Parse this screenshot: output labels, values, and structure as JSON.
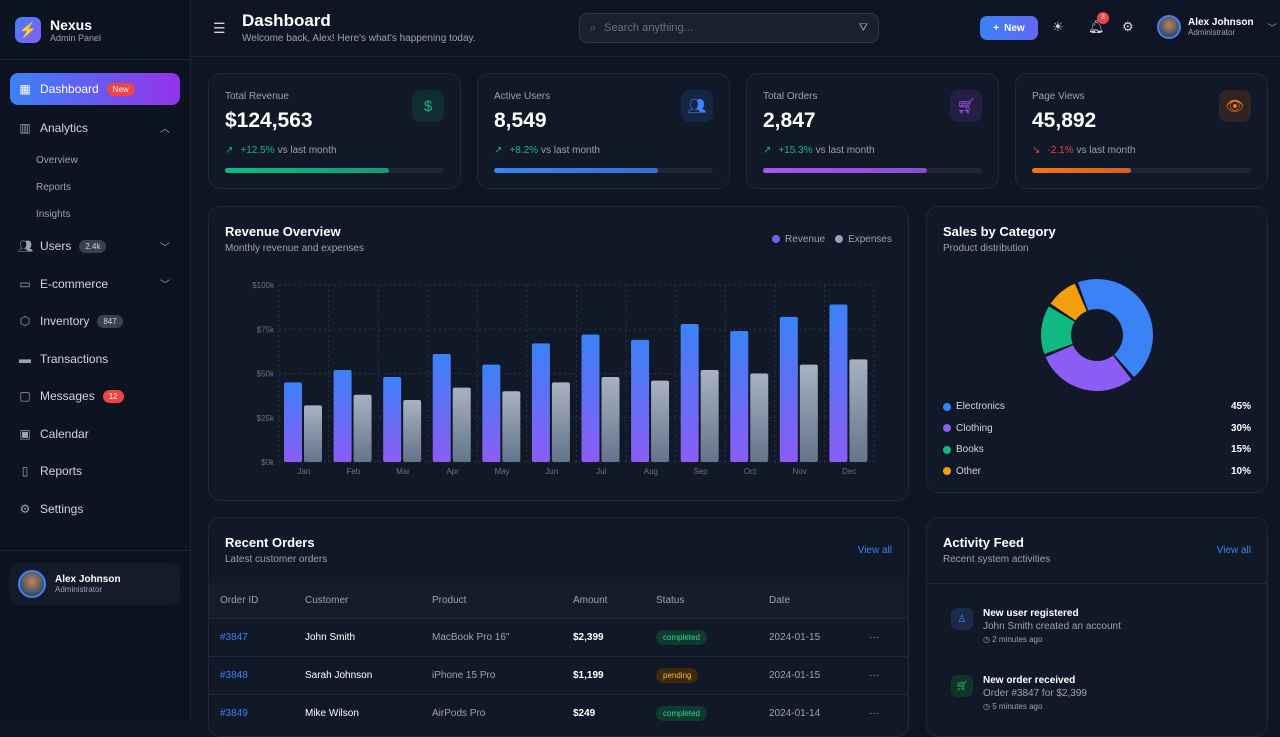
{
  "brand": {
    "name": "Nexus",
    "subtitle": "Admin Panel"
  },
  "sidebar": {
    "items": [
      {
        "label": "Dashboard",
        "badge": "New",
        "icon": "grid-icon"
      },
      {
        "label": "Analytics",
        "icon": "bar-chart-icon",
        "children": [
          "Overview",
          "Reports",
          "Insights"
        ]
      },
      {
        "label": "Users",
        "badge": "2.4k",
        "icon": "users-icon"
      },
      {
        "label": "E-commerce",
        "icon": "shopping-bag-icon"
      },
      {
        "label": "Inventory",
        "badge": "847",
        "icon": "box-icon"
      },
      {
        "label": "Transactions",
        "icon": "credit-card-icon"
      },
      {
        "label": "Messages",
        "badge": "12",
        "icon": "message-icon"
      },
      {
        "label": "Calendar",
        "icon": "calendar-icon"
      },
      {
        "label": "Reports",
        "icon": "file-icon"
      },
      {
        "label": "Settings",
        "icon": "gear-icon"
      }
    ],
    "user": {
      "name": "Alex Johnson",
      "role": "Administrator"
    }
  },
  "header": {
    "title": "Dashboard",
    "subtitle": "Welcome back, Alex! Here's what's happening today.",
    "search_placeholder": "Search anything...",
    "new_label": "New",
    "notifications": "3",
    "user": {
      "name": "Alex Johnson",
      "role": "Administrator"
    }
  },
  "kpis": [
    {
      "label": "Total Revenue",
      "value": "$124,563",
      "delta": "+12.5%",
      "suffix": "vs last month",
      "progress": 75,
      "color": "#10b981",
      "icon": "$"
    },
    {
      "label": "Active Users",
      "value": "8,549",
      "delta": "+8.2%",
      "suffix": "vs last month",
      "progress": 75,
      "color": "#3b82f6",
      "icon": "users"
    },
    {
      "label": "Total Orders",
      "value": "2,847",
      "delta": "+15.3%",
      "suffix": "vs last month",
      "progress": 75,
      "color": "#a855f7",
      "icon": "cart"
    },
    {
      "label": "Page Views",
      "value": "45,892",
      "delta": "-2.1%",
      "suffix": "vs last month",
      "progress": 45,
      "color": "#f97316",
      "icon": "eye"
    }
  ],
  "revenue": {
    "title": "Revenue Overview",
    "subtitle": "Monthly revenue and expenses"
  },
  "chart_data": {
    "type": "bar",
    "categories": [
      "Jan",
      "Feb",
      "Mar",
      "Apr",
      "May",
      "Jun",
      "Jul",
      "Aug",
      "Sep",
      "Oct",
      "Nov",
      "Dec"
    ],
    "series": [
      {
        "name": "Revenue",
        "values": [
          45,
          52,
          48,
          61,
          55,
          67,
          72,
          69,
          78,
          74,
          82,
          89
        ],
        "color": "#3b82f6"
      },
      {
        "name": "Expenses",
        "values": [
          32,
          38,
          35,
          42,
          40,
          45,
          48,
          46,
          52,
          50,
          55,
          58
        ],
        "color": "#94a3b8"
      }
    ],
    "yticks": [
      "$0k",
      "$25k",
      "$50k",
      "$75k",
      "$100k"
    ],
    "ylim": [
      0,
      100
    ],
    "grid": true,
    "legend": "top-right"
  },
  "sales": {
    "title": "Sales by Category",
    "subtitle": "Product distribution",
    "items": [
      {
        "label": "Electronics",
        "pct": "45%",
        "value": 45,
        "color": "#3b82f6"
      },
      {
        "label": "Clothing",
        "pct": "30%",
        "value": 30,
        "color": "#8b5cf6"
      },
      {
        "label": "Books",
        "pct": "15%",
        "value": 15,
        "color": "#10b981"
      },
      {
        "label": "Other",
        "pct": "10%",
        "value": 10,
        "color": "#f59e0b"
      }
    ]
  },
  "orders": {
    "title": "Recent Orders",
    "subtitle": "Latest customer orders",
    "view_all": "View all",
    "columns": [
      "Order ID",
      "Customer",
      "Product",
      "Amount",
      "Status",
      "Date"
    ],
    "rows": [
      {
        "id": "#3847",
        "customer": "John Smith",
        "product": "MacBook Pro 16\"",
        "amount": "$2,399",
        "status": "completed",
        "date": "2024-01-15"
      },
      {
        "id": "#3848",
        "customer": "Sarah Johnson",
        "product": "iPhone 15 Pro",
        "amount": "$1,199",
        "status": "pending",
        "date": "2024-01-15"
      },
      {
        "id": "#3849",
        "customer": "Mike Wilson",
        "product": "AirPods Pro",
        "amount": "$249",
        "status": "completed",
        "date": "2024-01-14"
      }
    ]
  },
  "activity": {
    "title": "Activity Feed",
    "subtitle": "Recent system activities",
    "view_all": "View all",
    "items": [
      {
        "title": "New user registered",
        "desc": "John Smith created an account",
        "time": "2 minutes ago"
      },
      {
        "title": "New order received",
        "desc": "Order #3847 for $2,399",
        "time": "5 minutes ago"
      }
    ]
  }
}
